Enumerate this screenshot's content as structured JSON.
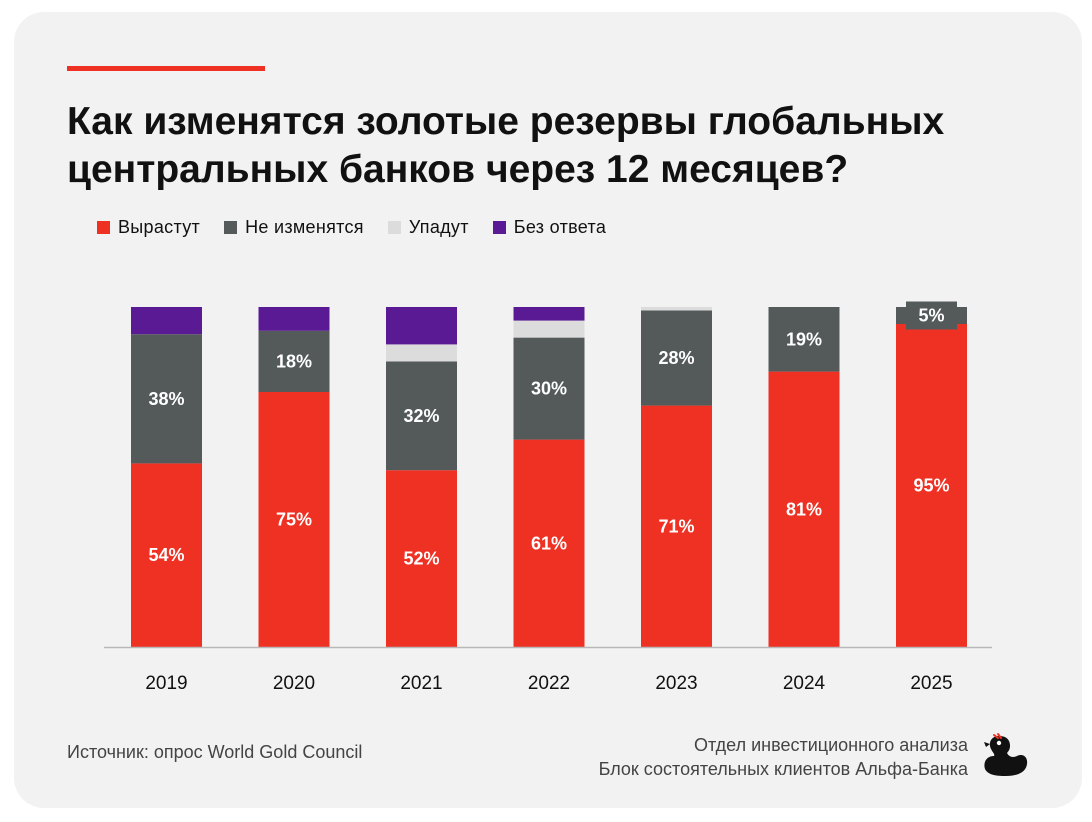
{
  "title_line1": "Как изменятся золотые резервы глобальных",
  "title_line2": "центральных банков через 12 месяцев?",
  "legend": [
    {
      "label": "Вырастут",
      "color": "#ef3124"
    },
    {
      "label": "Не изменятся",
      "color": "#545a5a"
    },
    {
      "label": "Упадут",
      "color": "#dcdcdc"
    },
    {
      "label": "Без ответа",
      "color": "#5a1a94"
    }
  ],
  "footer": {
    "source": "Источник: опрос World Gold Council",
    "dept_line1": "Отдел инвестиционного анализа",
    "dept_line2": "Блок состоятельных клиентов Альфа-Банка"
  },
  "chart_data": {
    "type": "bar",
    "stacked": true,
    "categories": [
      "2019",
      "2020",
      "2021",
      "2022",
      "2023",
      "2024",
      "2025"
    ],
    "series": [
      {
        "name": "Вырастут",
        "color": "#ef3124",
        "values": [
          54,
          75,
          52,
          61,
          71,
          81,
          95
        ],
        "labels": [
          "54%",
          "75%",
          "52%",
          "61%",
          "71%",
          "81%",
          "95%"
        ]
      },
      {
        "name": "Не изменятся",
        "color": "#545a5a",
        "values": [
          38,
          18,
          32,
          30,
          28,
          19,
          5
        ],
        "labels": [
          "38%",
          "18%",
          "32%",
          "30%",
          "28%",
          "19%",
          "5%"
        ]
      },
      {
        "name": "Упадут",
        "color": "#dcdcdc",
        "values": [
          0,
          0,
          5,
          5,
          1,
          0,
          0
        ],
        "labels": [
          "",
          "",
          "",
          "",
          "",
          "",
          ""
        ]
      },
      {
        "name": "Без ответа",
        "color": "#5a1a94",
        "values": [
          8,
          7,
          11,
          4,
          0,
          0,
          0
        ],
        "labels": [
          "",
          "",
          "",
          "",
          "",
          "",
          ""
        ]
      }
    ],
    "ylim": [
      0,
      100
    ],
    "grid": false,
    "legend_position": "top-left"
  }
}
